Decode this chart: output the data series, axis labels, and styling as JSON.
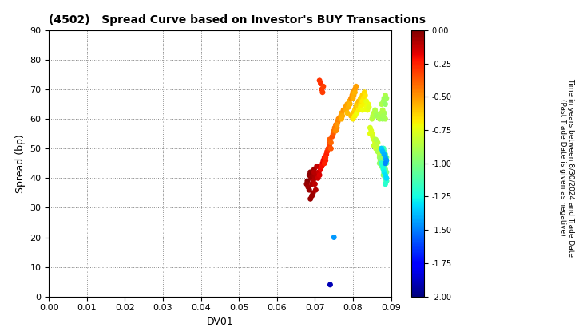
{
  "title": "(4502)   Spread Curve based on Investor's BUY Transactions",
  "xlabel": "DV01",
  "ylabel": "Spread (bp)",
  "xlim": [
    0.0,
    0.09
  ],
  "ylim": [
    0,
    90
  ],
  "xticks": [
    0.0,
    0.01,
    0.02,
    0.03,
    0.04,
    0.05,
    0.06,
    0.07,
    0.08,
    0.09
  ],
  "yticks": [
    0,
    10,
    20,
    30,
    40,
    50,
    60,
    70,
    80,
    90
  ],
  "colorbar_label_line1": "Time in years between 8/30/2024 and Trade Date",
  "colorbar_label_line2": "(Past Trade Date is given as negative)",
  "cbar_min": -2.0,
  "cbar_max": 0.0,
  "cbar_ticks": [
    0.0,
    -0.25,
    -0.5,
    -0.75,
    -1.0,
    -1.25,
    -1.5,
    -1.75,
    -2.0
  ],
  "points": [
    [
      0.068,
      39,
      -0.02
    ],
    [
      0.0685,
      41,
      -0.03
    ],
    [
      0.0678,
      38,
      -0.04
    ],
    [
      0.069,
      40,
      -0.05
    ],
    [
      0.0688,
      42,
      -0.03
    ],
    [
      0.0682,
      37,
      -0.06
    ],
    [
      0.0695,
      41,
      -0.07
    ],
    [
      0.0692,
      38,
      -0.08
    ],
    [
      0.0685,
      36,
      -0.05
    ],
    [
      0.0698,
      43,
      -0.06
    ],
    [
      0.07,
      40,
      -0.08
    ],
    [
      0.0695,
      39,
      -0.09
    ],
    [
      0.0705,
      41,
      -0.1
    ],
    [
      0.07,
      38,
      -0.11
    ],
    [
      0.0695,
      35,
      -0.07
    ],
    [
      0.0688,
      33,
      -0.04
    ],
    [
      0.0692,
      34,
      -0.05
    ],
    [
      0.0702,
      36,
      -0.09
    ],
    [
      0.0698,
      42,
      -0.1
    ],
    [
      0.0705,
      44,
      -0.12
    ],
    [
      0.071,
      42,
      -0.13
    ],
    [
      0.0708,
      40,
      -0.14
    ],
    [
      0.0715,
      43,
      -0.15
    ],
    [
      0.0712,
      41,
      -0.16
    ],
    [
      0.0718,
      44,
      -0.17
    ],
    [
      0.072,
      45,
      -0.18
    ],
    [
      0.0715,
      43,
      -0.19
    ],
    [
      0.0722,
      46,
      -0.2
    ],
    [
      0.0718,
      44,
      -0.21
    ],
    [
      0.0725,
      47,
      -0.22
    ],
    [
      0.0728,
      46,
      -0.23
    ],
    [
      0.073,
      48,
      -0.24
    ],
    [
      0.0725,
      45,
      -0.25
    ],
    [
      0.0732,
      49,
      -0.26
    ],
    [
      0.0728,
      47,
      -0.27
    ],
    [
      0.0715,
      72,
      -0.28
    ],
    [
      0.0718,
      70,
      -0.3
    ],
    [
      0.0722,
      71,
      -0.32
    ],
    [
      0.0712,
      73,
      -0.29
    ],
    [
      0.072,
      69,
      -0.31
    ],
    [
      0.0735,
      50,
      -0.3
    ],
    [
      0.0738,
      51,
      -0.32
    ],
    [
      0.074,
      52,
      -0.34
    ],
    [
      0.0742,
      50,
      -0.36
    ],
    [
      0.0738,
      53,
      -0.38
    ],
    [
      0.0745,
      54,
      -0.35
    ],
    [
      0.0742,
      52,
      -0.4
    ],
    [
      0.0748,
      55,
      -0.37
    ],
    [
      0.075,
      56,
      -0.42
    ],
    [
      0.0752,
      57,
      -0.44
    ],
    [
      0.0755,
      58,
      -0.43
    ],
    [
      0.0758,
      57,
      -0.46
    ],
    [
      0.076,
      59,
      -0.45
    ],
    [
      0.0755,
      56,
      -0.48
    ],
    [
      0.0762,
      60,
      -0.47
    ],
    [
      0.0758,
      58,
      -0.5
    ],
    [
      0.0765,
      60,
      -0.48
    ],
    [
      0.0768,
      61,
      -0.5
    ],
    [
      0.077,
      62,
      -0.52
    ],
    [
      0.0772,
      61,
      -0.54
    ],
    [
      0.0775,
      63,
      -0.5
    ],
    [
      0.077,
      60,
      -0.55
    ],
    [
      0.078,
      64,
      -0.52
    ],
    [
      0.0782,
      63,
      -0.54
    ],
    [
      0.0785,
      65,
      -0.53
    ],
    [
      0.0788,
      64,
      -0.56
    ],
    [
      0.0785,
      62,
      -0.58
    ],
    [
      0.079,
      66,
      -0.55
    ],
    [
      0.0792,
      65,
      -0.57
    ],
    [
      0.0795,
      67,
      -0.48
    ],
    [
      0.0798,
      68,
      -0.5
    ],
    [
      0.08,
      69,
      -0.52
    ],
    [
      0.0802,
      68,
      -0.54
    ],
    [
      0.0805,
      70,
      -0.5
    ],
    [
      0.08,
      67,
      -0.55
    ],
    [
      0.0808,
      71,
      -0.52
    ],
    [
      0.0805,
      69,
      -0.56
    ],
    [
      0.0795,
      61,
      -0.58
    ],
    [
      0.08,
      62,
      -0.6
    ],
    [
      0.0805,
      63,
      -0.62
    ],
    [
      0.0808,
      64,
      -0.58
    ],
    [
      0.081,
      65,
      -0.6
    ],
    [
      0.0812,
      64,
      -0.62
    ],
    [
      0.0815,
      66,
      -0.58
    ],
    [
      0.0818,
      65,
      -0.6
    ],
    [
      0.082,
      67,
      -0.62
    ],
    [
      0.0822,
      66,
      -0.64
    ],
    [
      0.0825,
      68,
      -0.62
    ],
    [
      0.082,
      65,
      -0.65
    ],
    [
      0.0828,
      67,
      -0.66
    ],
    [
      0.0825,
      66,
      -0.68
    ],
    [
      0.083,
      69,
      -0.65
    ],
    [
      0.0832,
      68,
      -0.67
    ],
    [
      0.08,
      60,
      -0.68
    ],
    [
      0.0805,
      61,
      -0.7
    ],
    [
      0.081,
      62,
      -0.72
    ],
    [
      0.0815,
      63,
      -0.68
    ],
    [
      0.082,
      64,
      -0.7
    ],
    [
      0.0825,
      63,
      -0.72
    ],
    [
      0.083,
      65,
      -0.7
    ],
    [
      0.0835,
      64,
      -0.72
    ],
    [
      0.0838,
      63,
      -0.74
    ],
    [
      0.084,
      65,
      -0.72
    ],
    [
      0.0835,
      66,
      -0.74
    ],
    [
      0.0842,
      64,
      -0.76
    ],
    [
      0.0845,
      55,
      -0.74
    ],
    [
      0.0848,
      56,
      -0.76
    ],
    [
      0.0845,
      57,
      -0.78
    ],
    [
      0.085,
      55,
      -0.76
    ],
    [
      0.0852,
      54,
      -0.78
    ],
    [
      0.0855,
      53,
      -0.8
    ],
    [
      0.0858,
      52,
      -0.78
    ],
    [
      0.0855,
      51,
      -0.82
    ],
    [
      0.086,
      50,
      -0.8
    ],
    [
      0.0862,
      51,
      -0.82
    ],
    [
      0.0865,
      52,
      -0.84
    ],
    [
      0.086,
      53,
      -0.86
    ],
    [
      0.0868,
      50,
      -0.84
    ],
    [
      0.0865,
      49,
      -0.88
    ],
    [
      0.087,
      48,
      -0.86
    ],
    [
      0.0872,
      47,
      -0.88
    ],
    [
      0.0875,
      46,
      -0.9
    ],
    [
      0.087,
      47,
      -0.92
    ],
    [
      0.0878,
      45,
      -0.9
    ],
    [
      0.0875,
      44,
      -0.94
    ],
    [
      0.088,
      43,
      -0.92
    ],
    [
      0.0882,
      42,
      -0.96
    ],
    [
      0.088,
      41,
      -0.98
    ],
    [
      0.0885,
      40,
      -0.94
    ],
    [
      0.0888,
      39,
      -1.0
    ],
    [
      0.0885,
      60,
      -0.88
    ],
    [
      0.0882,
      62,
      -0.9
    ],
    [
      0.0878,
      63,
      -0.86
    ],
    [
      0.0875,
      65,
      -0.88
    ],
    [
      0.088,
      66,
      -0.9
    ],
    [
      0.0882,
      67,
      -0.92
    ],
    [
      0.0885,
      68,
      -0.88
    ],
    [
      0.0888,
      67,
      -0.92
    ],
    [
      0.0885,
      65,
      -0.94
    ],
    [
      0.085,
      60,
      -0.85
    ],
    [
      0.0852,
      61,
      -0.87
    ],
    [
      0.0855,
      62,
      -0.85
    ],
    [
      0.0858,
      63,
      -0.87
    ],
    [
      0.086,
      62,
      -0.89
    ],
    [
      0.0862,
      61,
      -0.91
    ],
    [
      0.087,
      60,
      -0.88
    ],
    [
      0.0872,
      61,
      -0.9
    ],
    [
      0.0875,
      62,
      -0.88
    ],
    [
      0.0878,
      60,
      -0.92
    ],
    [
      0.088,
      61,
      -0.9
    ],
    [
      0.087,
      45,
      -0.95
    ],
    [
      0.0872,
      46,
      -0.97
    ],
    [
      0.0875,
      47,
      -0.95
    ],
    [
      0.0878,
      46,
      -0.99
    ],
    [
      0.088,
      45,
      -0.97
    ],
    [
      0.0882,
      44,
      -1.01
    ],
    [
      0.0885,
      43,
      -1.0
    ],
    [
      0.0888,
      42,
      -1.02
    ],
    [
      0.088,
      50,
      -1.05
    ],
    [
      0.0882,
      49,
      -1.07
    ],
    [
      0.0885,
      48,
      -1.05
    ],
    [
      0.0888,
      47,
      -1.08
    ],
    [
      0.0885,
      46,
      -1.1
    ],
    [
      0.0888,
      45,
      -1.12
    ],
    [
      0.0885,
      40,
      -1.15
    ],
    [
      0.0888,
      39,
      -1.18
    ],
    [
      0.0885,
      38,
      -1.2
    ],
    [
      0.0875,
      50,
      -1.1
    ],
    [
      0.0878,
      49,
      -1.12
    ],
    [
      0.088,
      50,
      -1.15
    ],
    [
      0.0875,
      45,
      -1.2
    ],
    [
      0.0878,
      44,
      -1.22
    ],
    [
      0.088,
      43,
      -1.25
    ],
    [
      0.0882,
      42,
      -1.28
    ],
    [
      0.0885,
      41,
      -1.3
    ],
    [
      0.0888,
      40,
      -1.32
    ],
    [
      0.0875,
      50,
      -1.35
    ],
    [
      0.0878,
      49,
      -1.38
    ],
    [
      0.0882,
      48,
      -1.4
    ],
    [
      0.0885,
      47,
      -1.42
    ],
    [
      0.0888,
      46,
      -1.45
    ],
    [
      0.0885,
      45,
      -1.48
    ],
    [
      0.075,
      20,
      -1.45
    ],
    [
      0.074,
      4,
      -1.9
    ]
  ],
  "background_color": "#ffffff",
  "grid_color": "#888888",
  "dot_size": 16,
  "colormap": "jet"
}
